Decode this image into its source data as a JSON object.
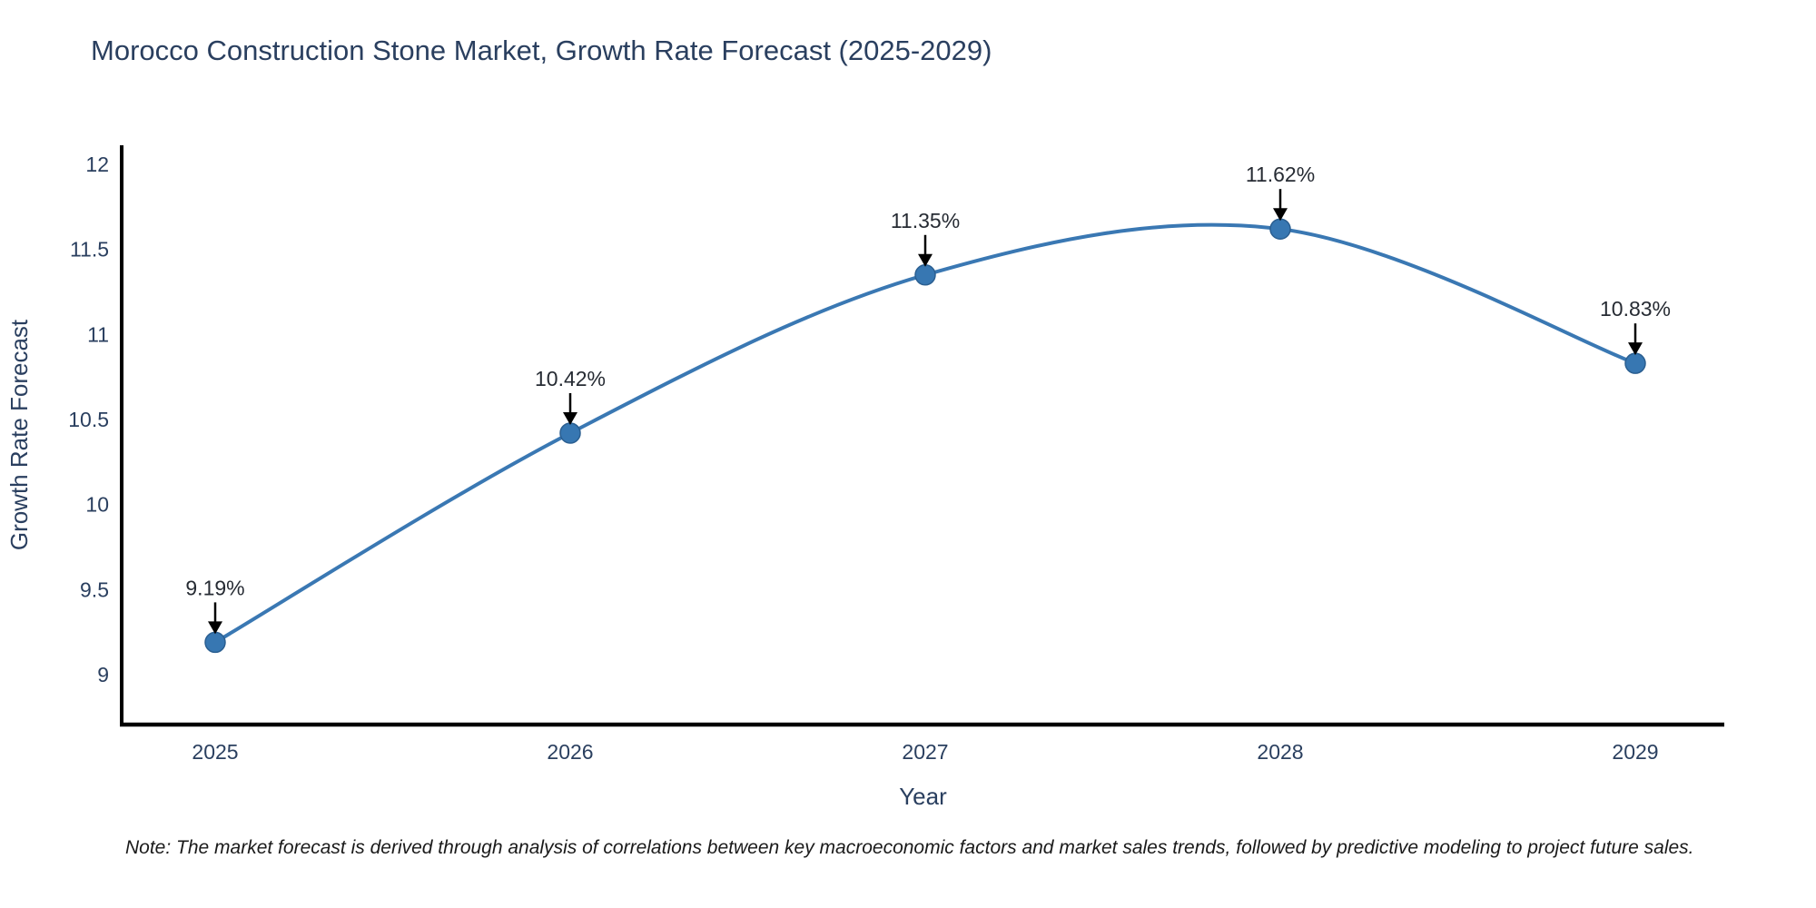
{
  "colors": {
    "line": "#3a78b3",
    "marker_fill": "#3777b2",
    "marker_edge": "#2b5f91",
    "axis": "#000000",
    "tick_text": "#2a3f5f",
    "annotation_text": "#262b33",
    "background": "#ffffff"
  },
  "note": "Note: The market forecast is derived through analysis of correlations between key macroeconomic factors and market sales trends, followed by predictive modeling to project future sales.",
  "chart_data": {
    "type": "line",
    "line_shape": "spline",
    "title": "Morocco Construction Stone Market, Growth Rate Forecast (2025-2029)",
    "xlabel": "Year",
    "ylabel": "Growth Rate Forecast",
    "categories": [
      "2025",
      "2026",
      "2027",
      "2028",
      "2029"
    ],
    "values": [
      9.19,
      10.42,
      11.35,
      11.62,
      10.83
    ],
    "point_labels": [
      "9.19%",
      "10.42%",
      "11.35%",
      "11.62%",
      "10.83%"
    ],
    "y_ticks": [
      12,
      11.5,
      11,
      10.5,
      10,
      9.5,
      9
    ],
    "y_tick_labels": [
      "12",
      "11.5",
      "11",
      "10.5",
      "10",
      "9.5",
      "9"
    ],
    "ylim": [
      8.71,
      12.11
    ],
    "grid": false,
    "legend": "none",
    "markers": "circle",
    "annotations_have_arrows": true
  }
}
